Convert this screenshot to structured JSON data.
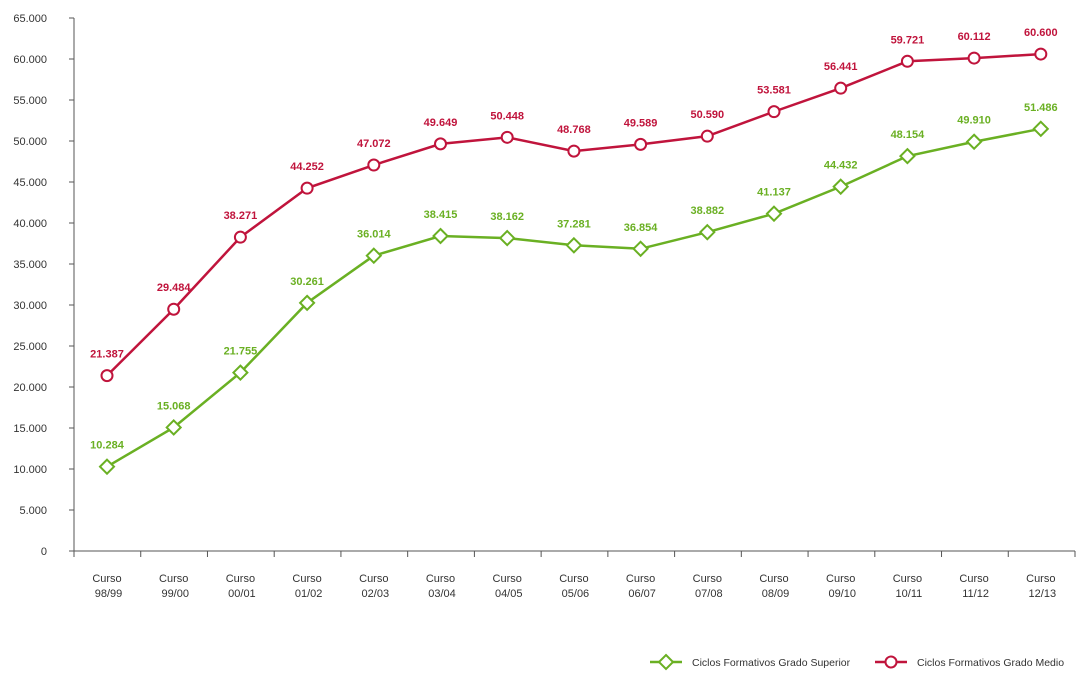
{
  "chart_data": {
    "type": "line",
    "categories": [
      "Curso 98/99",
      "Curso 99/00",
      "Curso 00/01",
      "Curso 01/02",
      "Curso 02/03",
      "Curso 03/04",
      "Curso 04/05",
      "Curso 05/06",
      "Curso 06/07",
      "Curso 07/08",
      "Curso 08/09",
      "Curso 09/10",
      "Curso 10/11",
      "Curso 11/12",
      "Curso 12/13"
    ],
    "series": [
      {
        "name": "Ciclos Formativos Grado Superior",
        "color": "#6ab023",
        "marker": "diamond",
        "values": [
          10284,
          15068,
          21755,
          30261,
          36014,
          38415,
          38162,
          37281,
          36854,
          38882,
          41137,
          44432,
          48154,
          49910,
          51486
        ],
        "value_labels": [
          "10.284",
          "15.068",
          "21.755",
          "30.261",
          "36.014",
          "38.415",
          "38.162",
          "37.281",
          "36.854",
          "38.882",
          "41.137",
          "44.432",
          "48.154",
          "49.910",
          "51.486"
        ]
      },
      {
        "name": "Ciclos Formativos Grado Medio",
        "color": "#c0143c",
        "marker": "circle",
        "values": [
          21387,
          29484,
          38271,
          44252,
          47072,
          49649,
          50448,
          48768,
          49589,
          50590,
          53581,
          56441,
          59721,
          60112,
          60600
        ],
        "value_labels": [
          "21.387",
          "29.484",
          "38.271",
          "44.252",
          "47.072",
          "49.649",
          "50.448",
          "48.768",
          "49.589",
          "50.590",
          "53.581",
          "56.441",
          "59.721",
          "60.112",
          "60.600"
        ]
      }
    ],
    "ylim": [
      0,
      65000
    ],
    "yticks": [
      {
        "value": 0,
        "label": "0"
      },
      {
        "value": 5000,
        "label": "5.000"
      },
      {
        "value": 10000,
        "label": "10.000"
      },
      {
        "value": 15000,
        "label": "15.000"
      },
      {
        "value": 20000,
        "label": "20.000"
      },
      {
        "value": 25000,
        "label": "25.000"
      },
      {
        "value": 30000,
        "label": "30.000"
      },
      {
        "value": 35000,
        "label": "35.000"
      },
      {
        "value": 40000,
        "label": "40.000"
      },
      {
        "value": 45000,
        "label": "45.000"
      },
      {
        "value": 50000,
        "label": "50.000"
      },
      {
        "value": 55000,
        "label": "55.000"
      },
      {
        "value": 60000,
        "label": "60.000"
      },
      {
        "value": 65000,
        "label": "65.000"
      }
    ],
    "grid": false,
    "legend": "bottom-right"
  }
}
